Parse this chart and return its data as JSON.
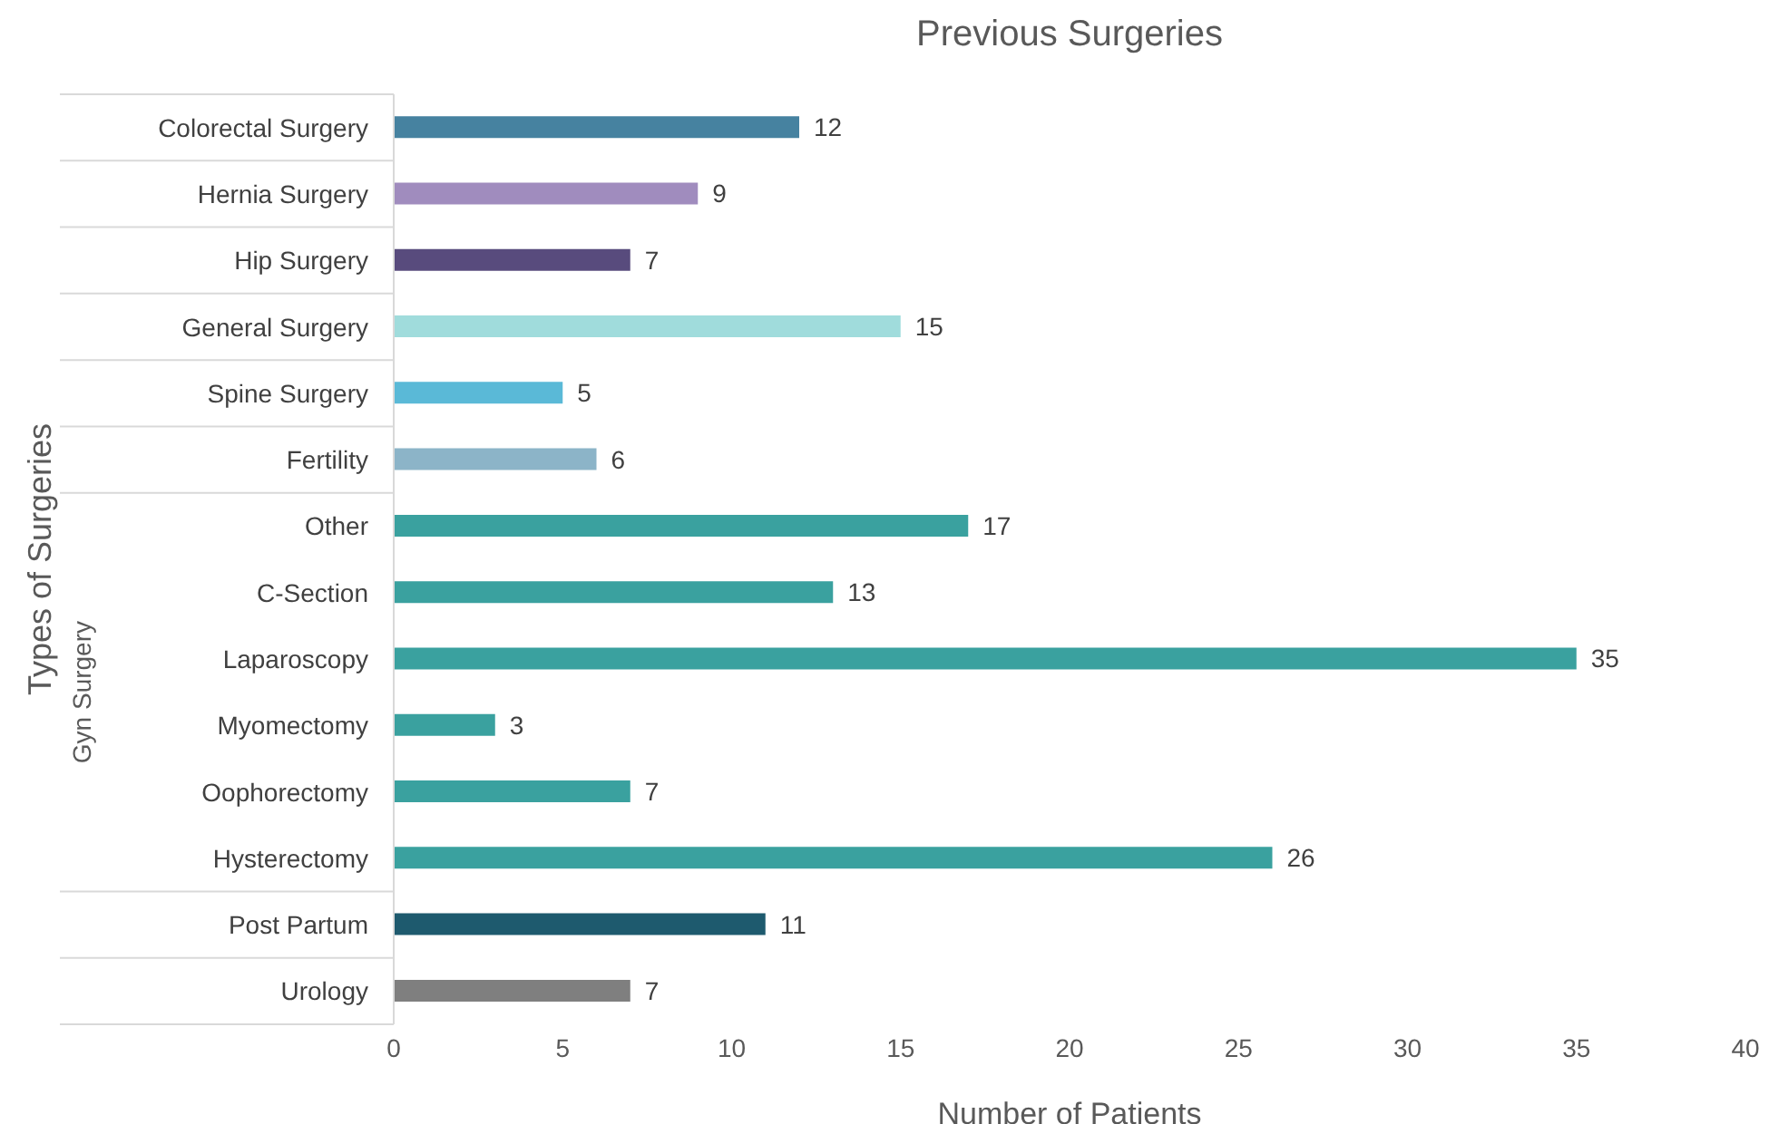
{
  "chart_data": {
    "type": "bar",
    "orientation": "horizontal",
    "title": "Previous Surgeries",
    "xlabel": "Number of Patients",
    "ylabel": "Types of Surgeries",
    "annotations": [
      "Gyn Surgery"
    ],
    "categories": [
      "Colorectal Surgery",
      "Hernia Surgery",
      "Hip Surgery",
      "General Surgery",
      "Spine Surgery",
      "Fertility",
      "Other",
      "C-Section",
      "Laparoscopy",
      "Myomectomy",
      "Oophorectomy ",
      "Hysterectomy",
      "Post Partum",
      "Urology"
    ],
    "values": [
      12,
      9,
      7,
      15,
      5,
      6,
      17,
      13,
      35,
      3,
      7,
      26,
      11,
      7
    ],
    "colors": [
      "#4682a0",
      "#a08cbe",
      "#584b7d",
      "#a0dcdc",
      "#5ab9d7",
      "#8cb4c8",
      "#3aa19f",
      "#3aa19f",
      "#3aa19f",
      "#3aa19f",
      "#3aa19f",
      "#3aa19f",
      "#1e5a6e",
      "#7f7f7f"
    ],
    "xlim": [
      0,
      40
    ],
    "xticks": [
      0,
      5,
      10,
      15,
      20,
      25,
      30,
      35,
      40
    ],
    "data_labels": true,
    "grid": false,
    "legend": false
  }
}
